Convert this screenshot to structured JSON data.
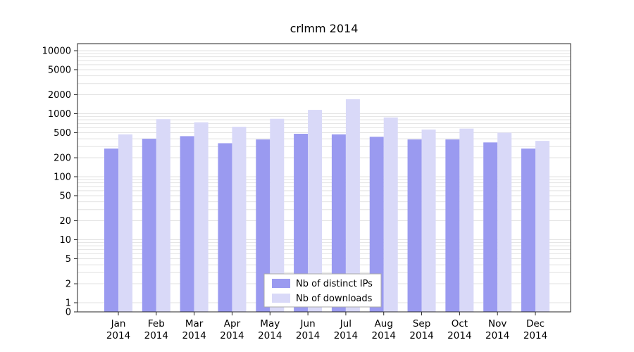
{
  "chart_data": {
    "type": "bar",
    "title": "crlmm 2014",
    "yscale": "log",
    "grid": true,
    "legend_position": "bottom-center",
    "categories": [
      "Jan",
      "Feb",
      "Mar",
      "Apr",
      "May",
      "Jun",
      "Jul",
      "Aug",
      "Sep",
      "Oct",
      "Nov",
      "Dec"
    ],
    "year_label": "2014",
    "yticks": [
      0,
      1,
      2,
      5,
      10,
      20,
      50,
      100,
      200,
      500,
      1000,
      2000,
      5000,
      10000
    ],
    "ylim": [
      0,
      10000
    ],
    "series": [
      {
        "name": "Nb of distinct IPs",
        "color": "#9a9af0",
        "values": [
          280,
          400,
          440,
          340,
          390,
          480,
          470,
          430,
          390,
          390,
          350,
          280
        ]
      },
      {
        "name": "Nb of downloads",
        "color": "#d9d9f8",
        "values": [
          470,
          820,
          730,
          620,
          830,
          1150,
          1700,
          870,
          560,
          580,
          500,
          370
        ]
      }
    ],
    "colors": {
      "grid": "#e2e2e2",
      "axis": "#262626",
      "legend_border": "#aaaaaa",
      "legend_bg": "#ffffff"
    }
  }
}
